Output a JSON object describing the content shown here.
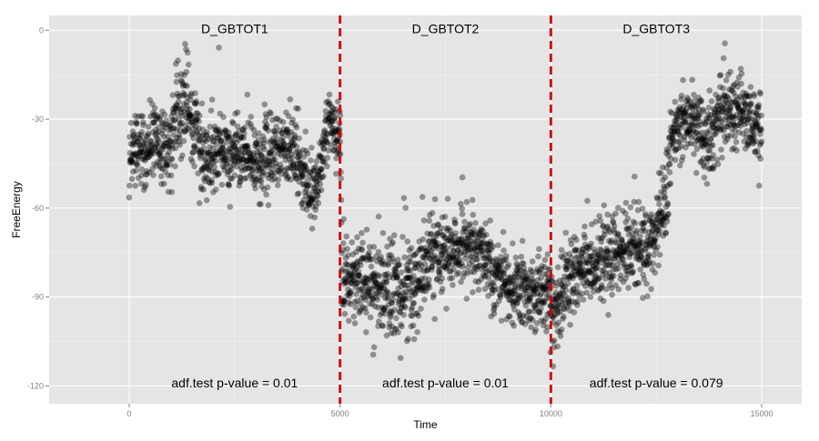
{
  "chart_data": {
    "type": "scatter",
    "xlabel": "Time",
    "ylabel": "FreeEnergy",
    "xlim": [
      -1900,
      15950
    ],
    "ylim": [
      -126,
      5
    ],
    "xticks": [
      0,
      5000,
      10000,
      15000
    ],
    "yticks": [
      0,
      -30,
      -60,
      -90,
      -120
    ],
    "grid": true,
    "panel_background": "#e5e5e5",
    "grid_color": "#ffffff",
    "point_color": "#000000",
    "point_opacity": 0.38,
    "changepoint_color": "#cc0000",
    "changepoints": [
      5000,
      10000
    ],
    "segments": [
      {
        "name": "D_GBTOT1",
        "x_range": [
          0,
          5000
        ],
        "label_x": 2500,
        "label_y": 0.5,
        "pvalue_text": "adf.test p-value =  0.01",
        "pvalue_x": 2500,
        "pvalue_y": -119
      },
      {
        "name": "D_GBTOT2",
        "x_range": [
          5000,
          10000
        ],
        "label_x": 7500,
        "label_y": 0.5,
        "pvalue_text": "adf.test p-value =  0.01",
        "pvalue_x": 7500,
        "pvalue_y": -119
      },
      {
        "name": "D_GBTOT3",
        "x_range": [
          10000,
          15000
        ],
        "label_x": 12500,
        "label_y": 0.5,
        "pvalue_text": "adf.test p-value =  0.079",
        "pvalue_x": 12500,
        "pvalue_y": -119
      }
    ],
    "trend": [
      [
        0,
        -40
      ],
      [
        600,
        -39
      ],
      [
        1000,
        -38
      ],
      [
        1150,
        -27
      ],
      [
        1350,
        -22
      ],
      [
        1450,
        -30
      ],
      [
        1800,
        -42
      ],
      [
        2500,
        -41
      ],
      [
        3200,
        -43
      ],
      [
        3800,
        -40
      ],
      [
        4100,
        -47
      ],
      [
        4350,
        -55
      ],
      [
        4500,
        -50
      ],
      [
        4650,
        -34
      ],
      [
        4850,
        -33
      ],
      [
        5000,
        -35
      ],
      [
        5050,
        -85
      ],
      [
        5600,
        -84
      ],
      [
        6000,
        -87
      ],
      [
        6500,
        -90
      ],
      [
        7000,
        -82
      ],
      [
        7200,
        -75
      ],
      [
        8000,
        -73
      ],
      [
        8500,
        -77
      ],
      [
        8700,
        -84
      ],
      [
        9400,
        -88
      ],
      [
        10000,
        -90
      ],
      [
        10050,
        -95
      ],
      [
        10300,
        -87
      ],
      [
        10800,
        -80
      ],
      [
        11500,
        -76
      ],
      [
        12200,
        -73
      ],
      [
        12500,
        -68
      ],
      [
        12750,
        -55
      ],
      [
        12850,
        -40
      ],
      [
        13050,
        -30
      ],
      [
        13400,
        -32
      ],
      [
        13700,
        -38
      ],
      [
        14000,
        -28
      ],
      [
        14400,
        -26
      ],
      [
        14700,
        -32
      ],
      [
        15000,
        -33
      ]
    ],
    "spread": [
      [
        0,
        7
      ],
      [
        1150,
        8
      ],
      [
        1450,
        8
      ],
      [
        4000,
        7
      ],
      [
        4500,
        7
      ],
      [
        5000,
        8
      ],
      [
        5050,
        8
      ],
      [
        6500,
        10
      ],
      [
        7000,
        8
      ],
      [
        8500,
        7
      ],
      [
        10000,
        7
      ],
      [
        10050,
        8
      ],
      [
        11500,
        8
      ],
      [
        12500,
        8
      ],
      [
        12850,
        8
      ],
      [
        15000,
        7
      ]
    ]
  }
}
